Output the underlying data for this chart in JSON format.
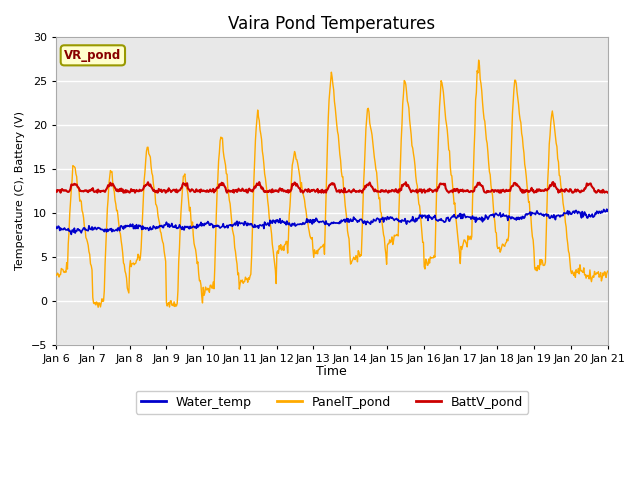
{
  "title": "Vaira Pond Temperatures",
  "xlabel": "Time",
  "ylabel": "Temperature (C), Battery (V)",
  "ylim": [
    -5,
    30
  ],
  "yticks": [
    -5,
    0,
    5,
    10,
    15,
    20,
    25,
    30
  ],
  "tick_labels": [
    "Jan 6",
    "Jan 7",
    "Jan 8",
    "Jan 9",
    "Jan 10",
    "Jan 11",
    "Jan 12",
    "Jan 13",
    "Jan 14",
    "Jan 15",
    "Jan 16",
    "Jan 17",
    "Jan 18",
    "Jan 19",
    "Jan 20",
    "Jan 21"
  ],
  "background_color": "#ffffff",
  "plot_bg_color": "#e8e8e8",
  "grid_color": "#ffffff",
  "water_temp_color": "#0000cc",
  "panel_temp_color": "#ffaa00",
  "batt_color": "#cc0000",
  "title_fontsize": 12,
  "station_label": "VR_pond",
  "station_label_color": "#880000",
  "station_label_bg": "#ffffcc",
  "station_label_edge": "#999900"
}
